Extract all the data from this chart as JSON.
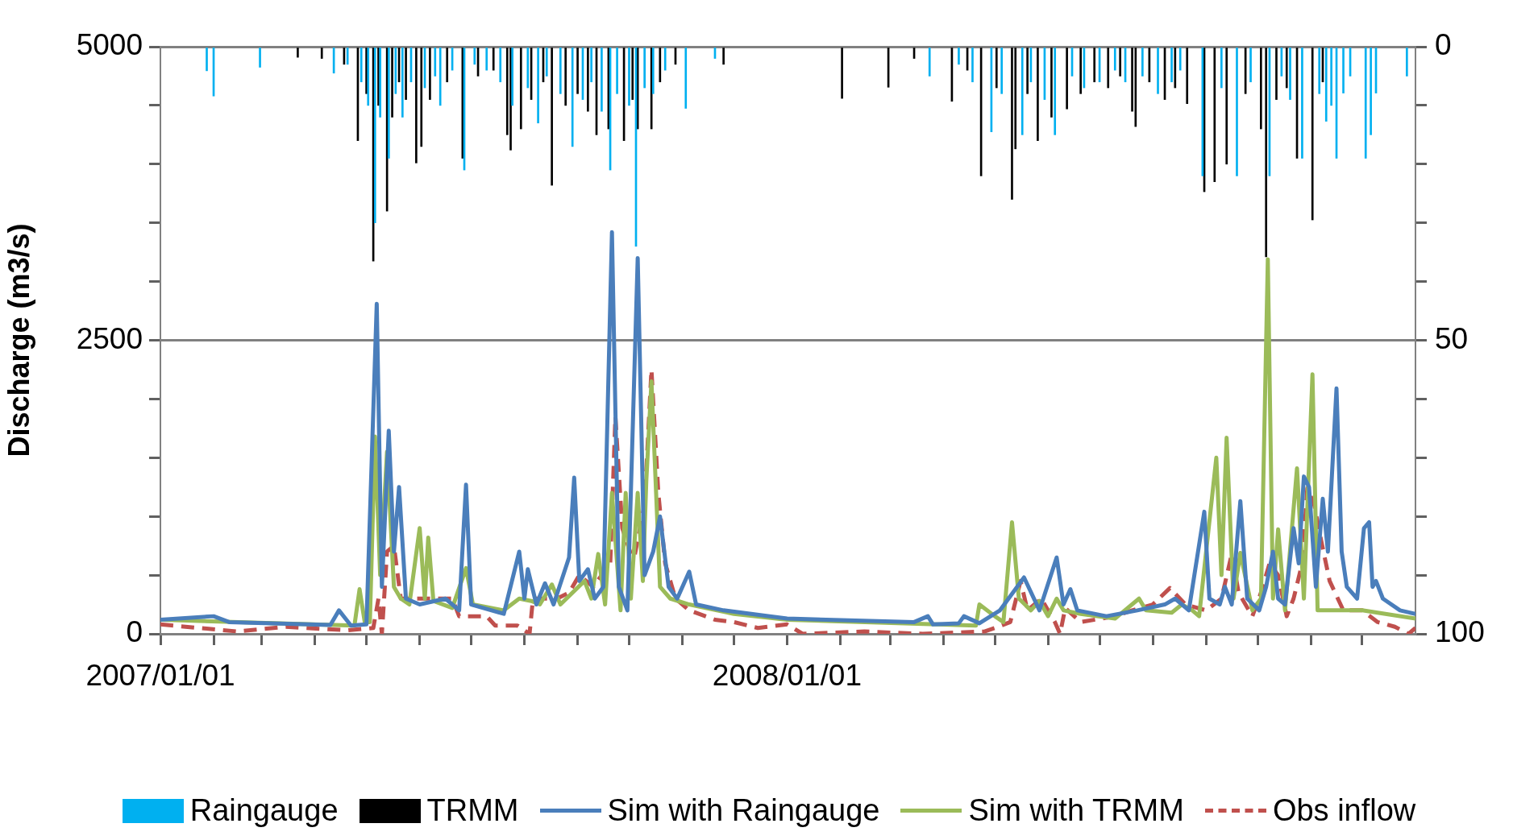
{
  "chart_data": {
    "type": "line",
    "ylabel": "Discharge (m3/s)",
    "grid": "y",
    "legend": "bottom",
    "marker": "none",
    "xlim": [
      "2007-01-01",
      "2009-01-01"
    ],
    "xticks": [
      {
        "value": "2007-01-01",
        "label": "2007/01/01"
      },
      {
        "value": "2007-02-01",
        "label": null
      },
      {
        "value": "2007-03-01",
        "label": null
      },
      {
        "value": "2007-04-01",
        "label": null
      },
      {
        "value": "2007-05-01",
        "label": null
      },
      {
        "value": "2007-06-01",
        "label": null
      },
      {
        "value": "2007-07-01",
        "label": null
      },
      {
        "value": "2007-08-01",
        "label": null
      },
      {
        "value": "2007-09-01",
        "label": null
      },
      {
        "value": "2007-10-01",
        "label": null
      },
      {
        "value": "2007-11-01",
        "label": null
      },
      {
        "value": "2007-12-01",
        "label": null
      },
      {
        "value": "2008-01-01",
        "label": "2008/01/01"
      },
      {
        "value": "2008-02-01",
        "label": null
      },
      {
        "value": "2008-03-01",
        "label": null
      },
      {
        "value": "2008-04-01",
        "label": null
      },
      {
        "value": "2008-05-01",
        "label": null
      },
      {
        "value": "2008-06-01",
        "label": null
      },
      {
        "value": "2008-07-01",
        "label": null
      },
      {
        "value": "2008-08-01",
        "label": null
      },
      {
        "value": "2008-09-01",
        "label": null
      },
      {
        "value": "2008-10-01",
        "label": null
      },
      {
        "value": "2008-11-01",
        "label": null
      },
      {
        "value": "2008-12-01",
        "label": null
      }
    ],
    "ylim": [
      0,
      5000
    ],
    "yticks": [
      0,
      {
        "value": 500,
        "label": null
      },
      {
        "value": 1000,
        "label": null
      },
      {
        "value": 1500,
        "label": null
      },
      {
        "value": 2000,
        "label": null
      },
      2500,
      {
        "value": 3000,
        "label": null
      },
      {
        "value": 3500,
        "label": null
      },
      {
        "value": 4000,
        "label": null
      },
      {
        "value": 4500,
        "label": null
      },
      5000
    ],
    "y2lim": [
      100,
      0
    ],
    "y2ticks": [
      0,
      {
        "value": 10,
        "label": null
      },
      {
        "value": 20,
        "label": null
      },
      {
        "value": 30,
        "label": null
      },
      {
        "value": 40,
        "label": null
      },
      50,
      {
        "value": 60,
        "label": null
      },
      {
        "value": 70,
        "label": null
      },
      {
        "value": 80,
        "label": null
      },
      {
        "value": 90,
        "label": null
      },
      100
    ],
    "series": [
      {
        "name": "Raingauge",
        "type": "bar",
        "axis": "y2",
        "color": "#00b0f0",
        "x": [
          "2007-01-28",
          "2007-02-01",
          "2007-02-28",
          "2007-04-12",
          "2007-04-20",
          "2007-04-28",
          "2007-05-02",
          "2007-05-06",
          "2007-05-09",
          "2007-05-14",
          "2007-05-18",
          "2007-05-22",
          "2007-05-27",
          "2007-06-04",
          "2007-06-10",
          "2007-06-13",
          "2007-06-20",
          "2007-06-27",
          "2007-07-03",
          "2007-07-10",
          "2007-07-18",
          "2007-07-25",
          "2007-08-03",
          "2007-08-09",
          "2007-08-14",
          "2007-08-22",
          "2007-08-29",
          "2007-09-04",
          "2007-09-09",
          "2007-09-15",
          "2007-09-20",
          "2007-09-24",
          "2007-10-01",
          "2007-10-05",
          "2007-10-10",
          "2007-10-15",
          "2007-10-22",
          "2007-11-03",
          "2007-11-20",
          "2008-03-24",
          "2008-04-10",
          "2008-04-18",
          "2008-04-29",
          "2008-05-05",
          "2008-05-17",
          "2008-05-22",
          "2008-05-30",
          "2008-06-05",
          "2008-06-15",
          "2008-06-22",
          "2008-07-01",
          "2008-07-10",
          "2008-07-16",
          "2008-07-26",
          "2008-08-04",
          "2008-08-12",
          "2008-08-17",
          "2008-08-30",
          "2008-09-10",
          "2008-09-19",
          "2008-09-27",
          "2008-10-08",
          "2008-10-15",
          "2008-10-20",
          "2008-10-27",
          "2008-11-06",
          "2008-11-10",
          "2008-11-13",
          "2008-11-16",
          "2008-11-20",
          "2008-11-24",
          "2008-12-03",
          "2008-12-06",
          "2008-12-09",
          "2008-12-27"
        ],
        "values": [
          4.1,
          8.4,
          3.5,
          4.5,
          3,
          6,
          10,
          30,
          12,
          19,
          8,
          12,
          6,
          7,
          5,
          10,
          4,
          21,
          3,
          4,
          6,
          10,
          7,
          13,
          5,
          8,
          17,
          9,
          6,
          11,
          21,
          8,
          10,
          34,
          7,
          8,
          4,
          10.5,
          2,
          5,
          3,
          6,
          14.5,
          8,
          15,
          6,
          9,
          15,
          5,
          7,
          6,
          4,
          6,
          5,
          8,
          6,
          4,
          22,
          7,
          22,
          6,
          22,
          5,
          9,
          19,
          8,
          12.7,
          10,
          19,
          7.9,
          5,
          19,
          15,
          7.9,
          5
        ]
      },
      {
        "name": "TRMM",
        "type": "bar",
        "axis": "y2",
        "color": "#000000",
        "x": [
          "2007-03-22",
          "2007-04-05",
          "2007-04-18",
          "2007-04-26",
          "2007-05-01",
          "2007-05-05",
          "2007-05-08",
          "2007-05-13",
          "2007-05-16",
          "2007-05-20",
          "2007-05-24",
          "2007-05-30",
          "2007-06-02",
          "2007-06-07",
          "2007-06-17",
          "2007-06-26",
          "2007-07-05",
          "2007-07-14",
          "2007-07-22",
          "2007-07-24",
          "2007-07-30",
          "2007-08-05",
          "2007-08-12",
          "2007-08-17",
          "2007-08-25",
          "2007-09-01",
          "2007-09-07",
          "2007-09-12",
          "2007-09-19",
          "2007-09-28",
          "2007-10-03",
          "2007-10-06",
          "2007-10-14",
          "2007-10-19",
          "2007-10-28",
          "2007-11-25",
          "2008-02-02",
          "2008-02-29",
          "2008-03-15",
          "2008-04-06",
          "2008-04-15",
          "2008-04-23",
          "2008-05-02",
          "2008-05-11",
          "2008-05-13",
          "2008-05-20",
          "2008-05-26",
          "2008-06-03",
          "2008-06-12",
          "2008-06-20",
          "2008-06-28",
          "2008-07-06",
          "2008-07-13",
          "2008-07-20",
          "2008-07-22",
          "2008-07-30",
          "2008-08-08",
          "2008-08-14",
          "2008-08-21",
          "2008-08-31",
          "2008-09-06",
          "2008-09-13",
          "2008-09-24",
          "2008-10-03",
          "2008-10-06",
          "2008-10-12",
          "2008-10-18",
          "2008-10-24",
          "2008-11-02",
          "2008-11-08"
        ],
        "values": [
          1.8,
          2,
          3,
          16,
          8,
          36.5,
          10,
          28,
          12,
          6,
          9,
          19.8,
          17,
          9,
          6,
          19,
          5,
          4,
          15,
          17.6,
          14,
          9,
          6,
          23.6,
          10,
          8,
          11,
          15,
          14,
          16,
          9,
          14,
          14,
          6,
          3,
          3,
          8.8,
          6.9,
          2,
          9.3,
          4,
          22,
          7,
          26,
          17.4,
          8,
          16,
          12,
          10.6,
          8,
          6,
          7,
          5,
          11,
          13.6,
          6,
          9,
          7,
          9.7,
          24.7,
          23,
          20,
          8,
          14,
          35.8,
          9,
          7,
          19,
          29.5,
          6
        ]
      },
      {
        "name": "Sim with Raingauge",
        "color": "#4a7ebb",
        "x": [
          "2007-01-01",
          "2007-02-01",
          "2007-02-10",
          "2007-04-10",
          "2007-04-15",
          "2007-04-22",
          "2007-05-01",
          "2007-05-07",
          "2007-05-10",
          "2007-05-14",
          "2007-05-17",
          "2007-05-20",
          "2007-05-24",
          "2007-06-01",
          "2007-06-16",
          "2007-06-24",
          "2007-06-28",
          "2007-07-01",
          "2007-07-20",
          "2007-07-29",
          "2007-08-01",
          "2007-08-03",
          "2007-08-08",
          "2007-08-13",
          "2007-08-18",
          "2007-08-27",
          "2007-08-30",
          "2007-09-02",
          "2007-09-07",
          "2007-09-11",
          "2007-09-16",
          "2007-09-21",
          "2007-09-25",
          "2007-09-30",
          "2007-10-06",
          "2007-10-10",
          "2007-10-15",
          "2007-10-19",
          "2007-10-24",
          "2007-10-29",
          "2007-11-05",
          "2007-11-09",
          "2007-11-25",
          "2008-01-01",
          "2008-03-15",
          "2008-03-23",
          "2008-03-26",
          "2008-04-10",
          "2008-04-13",
          "2008-04-22",
          "2008-05-04",
          "2008-05-18",
          "2008-05-27",
          "2008-06-06",
          "2008-06-10",
          "2008-06-14",
          "2008-06-18",
          "2008-07-05",
          "2008-07-23",
          "2008-08-08",
          "2008-08-14",
          "2008-08-22",
          "2008-08-31",
          "2008-09-03",
          "2008-09-09",
          "2008-09-12",
          "2008-09-16",
          "2008-09-21",
          "2008-09-25",
          "2008-10-02",
          "2008-10-06",
          "2008-10-10",
          "2008-10-13",
          "2008-10-17",
          "2008-10-22",
          "2008-10-25",
          "2008-10-28",
          "2008-10-31",
          "2008-11-04",
          "2008-11-08",
          "2008-11-11",
          "2008-11-16",
          "2008-11-19",
          "2008-11-22",
          "2008-11-28",
          "2008-12-02",
          "2008-12-05",
          "2008-12-07",
          "2008-12-09",
          "2008-12-13",
          "2008-12-23",
          "2009-01-01"
        ],
        "values": [
          120,
          150,
          100,
          75,
          200,
          70,
          80,
          2810,
          400,
          1730,
          700,
          1250,
          300,
          250,
          300,
          200,
          1270,
          250,
          170,
          700,
          300,
          550,
          250,
          430,
          250,
          650,
          1330,
          450,
          550,
          300,
          400,
          3420,
          400,
          200,
          3200,
          500,
          700,
          1000,
          400,
          300,
          530,
          250,
          200,
          130,
          100,
          150,
          80,
          90,
          150,
          90,
          200,
          480,
          200,
          650,
          250,
          380,
          200,
          150,
          200,
          250,
          300,
          200,
          1040,
          300,
          250,
          400,
          250,
          1130,
          300,
          200,
          400,
          700,
          300,
          250,
          900,
          600,
          1340,
          1250,
          400,
          1150,
          700,
          2090,
          700,
          400,
          300,
          900,
          950,
          400,
          450,
          300,
          200,
          170
        ]
      },
      {
        "name": "Sim with TRMM",
        "color": "#9bbb59",
        "x": [
          "2007-01-01",
          "2007-04-24",
          "2007-04-27",
          "2007-04-30",
          "2007-05-03",
          "2007-05-06",
          "2007-05-09",
          "2007-05-13",
          "2007-05-17",
          "2007-05-21",
          "2007-05-26",
          "2007-06-01",
          "2007-06-04",
          "2007-06-06",
          "2007-06-09",
          "2007-06-20",
          "2007-06-28",
          "2007-07-02",
          "2007-07-20",
          "2007-07-29",
          "2007-08-05",
          "2007-08-10",
          "2007-08-17",
          "2007-08-22",
          "2007-09-05",
          "2007-09-09",
          "2007-09-13",
          "2007-09-17",
          "2007-09-21",
          "2007-09-26",
          "2007-09-29",
          "2007-10-02",
          "2007-10-06",
          "2007-10-09",
          "2007-10-11",
          "2007-10-14",
          "2007-10-19",
          "2007-10-25",
          "2007-11-05",
          "2007-12-01",
          "2008-01-01",
          "2008-04-20",
          "2008-04-22",
          "2008-05-01",
          "2008-05-06",
          "2008-05-11",
          "2008-05-15",
          "2008-05-22",
          "2008-05-27",
          "2008-06-01",
          "2008-06-06",
          "2008-06-10",
          "2008-06-20",
          "2008-07-10",
          "2008-07-24",
          "2008-07-28",
          "2008-08-12",
          "2008-08-18",
          "2008-08-24",
          "2008-08-28",
          "2008-09-07",
          "2008-09-10",
          "2008-09-13",
          "2008-09-17",
          "2008-09-21",
          "2008-09-28",
          "2008-10-03",
          "2008-10-07",
          "2008-10-10",
          "2008-10-13",
          "2008-10-17",
          "2008-10-24",
          "2008-10-28",
          "2008-11-02",
          "2008-11-05",
          "2008-12-01",
          "2009-01-01"
        ],
        "values": [
          120,
          70,
          380,
          100,
          100,
          1680,
          500,
          1550,
          400,
          300,
          250,
          900,
          300,
          820,
          280,
          220,
          560,
          250,
          200,
          300,
          280,
          250,
          420,
          250,
          450,
          300,
          680,
          250,
          1200,
          200,
          1200,
          300,
          1200,
          450,
          1300,
          2150,
          400,
          300,
          250,
          170,
          120,
          70,
          250,
          150,
          100,
          950,
          300,
          200,
          280,
          150,
          300,
          200,
          170,
          130,
          300,
          200,
          180,
          250,
          200,
          150,
          1500,
          500,
          1670,
          300,
          690,
          200,
          300,
          3190,
          300,
          890,
          200,
          1410,
          300,
          2210,
          200,
          200,
          130
        ]
      },
      {
        "name": "Obs inflow",
        "line_style": "dashed",
        "color": "#c0504d",
        "x": [
          "2007-01-01",
          "2007-02-15",
          "2007-03-15",
          "2007-04-20",
          "2007-05-05",
          "2007-05-08",
          "2007-05-10",
          "2007-05-13",
          "2007-05-17",
          "2007-05-21",
          "2007-06-01",
          "2007-06-20",
          "2007-06-24",
          "2007-07-10",
          "2007-07-15",
          "2007-07-28",
          "2007-08-04",
          "2007-08-06",
          "2007-08-20",
          "2007-08-27",
          "2007-09-02",
          "2007-09-10",
          "2007-09-20",
          "2007-09-23",
          "2007-09-27",
          "2007-10-02",
          "2007-10-04",
          "2007-10-10",
          "2007-10-14",
          "2007-10-18",
          "2007-10-22",
          "2007-10-28",
          "2007-11-05",
          "2007-11-20",
          "2007-12-01",
          "2007-12-15",
          "2008-01-01",
          "2008-01-10",
          "2008-02-15",
          "2008-03-20",
          "2008-04-25",
          "2008-05-01",
          "2008-05-10",
          "2008-05-16",
          "2008-05-20",
          "2008-05-28",
          "2008-06-05",
          "2008-06-08",
          "2008-06-11",
          "2008-06-20",
          "2008-07-10",
          "2008-07-20",
          "2008-08-01",
          "2008-08-11",
          "2008-08-20",
          "2008-09-01",
          "2008-09-10",
          "2008-09-16",
          "2008-09-20",
          "2008-09-28",
          "2008-10-03",
          "2008-10-08",
          "2008-10-13",
          "2008-10-18",
          "2008-10-22",
          "2008-10-27",
          "2008-10-30",
          "2008-11-03",
          "2008-11-07",
          "2008-11-12",
          "2008-11-20",
          "2008-12-01",
          "2008-12-10",
          "2008-12-20",
          "2008-12-28",
          "2009-01-01"
        ],
        "values": [
          80,
          20,
          60,
          30,
          50,
          300,
          0,
          700,
          750,
          300,
          300,
          300,
          150,
          150,
          70,
          70,
          0,
          300,
          300,
          350,
          500,
          400,
          600,
          1850,
          900,
          680,
          650,
          1100,
          2250,
          1200,
          600,
          300,
          200,
          120,
          100,
          50,
          80,
          0,
          20,
          0,
          20,
          50,
          100,
          450,
          200,
          300,
          100,
          0,
          220,
          100,
          150,
          200,
          250,
          390,
          250,
          200,
          300,
          680,
          350,
          150,
          350,
          600,
          500,
          150,
          300,
          600,
          1240,
          1100,
          800,
          450,
          200,
          200,
          100,
          60,
          0,
          50
        ]
      }
    ]
  }
}
